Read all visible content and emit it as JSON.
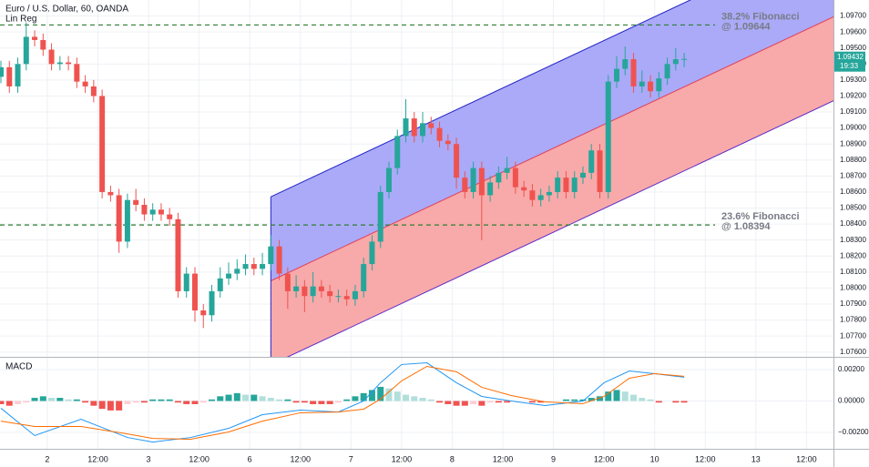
{
  "header": {
    "title": "Euro / U.S. Dollar, 60, OANDA",
    "indicator": "Lin Reg"
  },
  "chart_data": [
    {
      "type": "candlestick",
      "x": [
        0,
        2,
        4,
        6,
        8,
        10,
        12,
        14,
        16,
        18,
        20,
        22,
        24,
        26,
        28,
        30,
        32,
        34,
        36,
        38,
        40,
        42,
        44,
        46,
        48,
        50,
        52,
        54,
        56,
        58,
        60,
        62,
        64,
        66,
        68,
        70,
        72,
        74,
        76,
        78,
        80,
        82,
        84,
        86,
        88,
        90,
        92,
        94,
        96,
        98,
        100,
        102,
        104,
        106,
        108,
        110,
        112,
        114,
        116,
        118,
        120,
        122,
        124,
        126,
        128,
        130,
        132,
        134,
        136,
        138,
        140,
        142,
        144,
        146,
        148,
        150,
        152,
        154,
        156,
        158,
        160,
        162
      ],
      "open": [
        1.0932,
        1.0938,
        1.0926,
        1.094,
        1.0957,
        1.0955,
        1.0949,
        1.094,
        1.0941,
        1.094,
        1.0929,
        1.0926,
        1.092,
        1.086,
        1.0858,
        1.0829,
        1.0855,
        1.0852,
        1.0846,
        1.0849,
        1.0846,
        1.0843,
        1.0798,
        1.0809,
        1.0786,
        1.0783,
        1.0798,
        1.0806,
        1.0809,
        1.0812,
        1.0815,
        1.0812,
        1.0815,
        1.0826,
        1.0809,
        1.0798,
        1.0801,
        1.0795,
        1.0801,
        1.0798,
        1.0795,
        1.0795,
        1.0793,
        1.0798,
        1.0815,
        1.0829,
        1.086,
        1.0875,
        1.0895,
        1.0906,
        1.0895,
        1.0903,
        1.09,
        1.0892,
        1.089,
        1.0869,
        1.086,
        1.0875,
        1.0858,
        1.0866,
        1.0872,
        1.0875,
        1.0863,
        1.0861,
        1.0855,
        1.0858,
        1.086,
        1.0869,
        1.086,
        1.0869,
        1.0872,
        1.0886,
        1.086,
        1.0929,
        1.0937,
        1.0943,
        1.0926,
        1.0929,
        1.0923,
        1.0931,
        1.094,
        1.0943
      ],
      "high": [
        1.0942,
        1.0942,
        1.0944,
        1.0966,
        1.0961,
        1.0959,
        1.0953,
        1.0945,
        1.0945,
        1.0944,
        1.0933,
        1.093,
        1.0924,
        1.0864,
        1.0862,
        1.0859,
        1.0862,
        1.0856,
        1.0853,
        1.0853,
        1.085,
        1.0847,
        1.0813,
        1.0813,
        1.079,
        1.0802,
        1.0813,
        1.0816,
        1.0818,
        1.0821,
        1.0819,
        1.0822,
        1.0833,
        1.083,
        1.0813,
        1.0808,
        1.0805,
        1.081,
        1.0805,
        1.0802,
        1.0799,
        1.0799,
        1.0802,
        1.0819,
        1.0833,
        1.0864,
        1.0879,
        1.0899,
        1.0918,
        1.091,
        1.091,
        1.0907,
        1.0904,
        1.0896,
        1.0894,
        1.0873,
        1.0879,
        1.0879,
        1.087,
        1.0876,
        1.0882,
        1.0879,
        1.0867,
        1.0865,
        1.0862,
        1.0864,
        1.0873,
        1.0873,
        1.0873,
        1.0876,
        1.089,
        1.089,
        1.0933,
        1.0945,
        1.0951,
        1.0947,
        1.0936,
        1.0933,
        1.0935,
        1.0944,
        1.095,
        1.0947
      ],
      "low": [
        1.0928,
        1.0922,
        1.0922,
        1.0936,
        1.0951,
        1.0945,
        1.0936,
        1.0936,
        1.0936,
        1.0925,
        1.0922,
        1.0916,
        1.0856,
        1.0854,
        1.0822,
        1.0825,
        1.0848,
        1.0842,
        1.0842,
        1.0842,
        1.0839,
        1.0794,
        1.0794,
        1.0779,
        1.0775,
        1.0779,
        1.0794,
        1.0802,
        1.0805,
        1.0808,
        1.0808,
        1.0808,
        1.0811,
        1.0805,
        1.0787,
        1.0794,
        1.0785,
        1.0791,
        1.0794,
        1.0791,
        1.0791,
        1.0789,
        1.0789,
        1.0794,
        1.0811,
        1.0825,
        1.0856,
        1.0871,
        1.0891,
        1.0891,
        1.0891,
        1.0896,
        1.0888,
        1.0886,
        1.0862,
        1.0856,
        1.0856,
        1.083,
        1.0854,
        1.0862,
        1.0868,
        1.0859,
        1.0857,
        1.0851,
        1.0851,
        1.0854,
        1.0856,
        1.0856,
        1.0856,
        1.0865,
        1.0868,
        1.0856,
        1.0856,
        1.0925,
        1.0933,
        1.0922,
        1.0922,
        1.0919,
        1.0919,
        1.0927,
        1.0936,
        1.0938
      ],
      "close": [
        1.0938,
        1.0926,
        1.094,
        1.0957,
        1.0955,
        1.0949,
        1.094,
        1.0941,
        1.094,
        1.0929,
        1.0926,
        1.092,
        1.086,
        1.0858,
        1.0829,
        1.0855,
        1.0852,
        1.0846,
        1.0849,
        1.0846,
        1.0843,
        1.0798,
        1.0809,
        1.0786,
        1.0783,
        1.0798,
        1.0806,
        1.0809,
        1.0812,
        1.0815,
        1.0812,
        1.0815,
        1.0826,
        1.0809,
        1.0798,
        1.0801,
        1.0795,
        1.0801,
        1.0798,
        1.0795,
        1.0795,
        1.0793,
        1.0798,
        1.0815,
        1.0829,
        1.086,
        1.0875,
        1.0895,
        1.0906,
        1.0895,
        1.0903,
        1.09,
        1.0892,
        1.089,
        1.0869,
        1.086,
        1.0875,
        1.0858,
        1.0866,
        1.0872,
        1.0875,
        1.0863,
        1.0861,
        1.0855,
        1.0858,
        1.086,
        1.0869,
        1.086,
        1.0869,
        1.0872,
        1.0886,
        1.086,
        1.0929,
        1.0937,
        1.0943,
        1.0926,
        1.0929,
        1.0923,
        1.0931,
        1.094,
        1.0943,
        1.09432
      ],
      "up_color": "#26a69a",
      "down_color": "#ef5350",
      "xlim": [
        0,
        197.4
      ],
      "xticks": [
        {
          "value": 11,
          "label": "2"
        },
        {
          "value": 23,
          "label": "12:00"
        },
        {
          "value": 35,
          "label": "3"
        },
        {
          "value": 47,
          "label": "12:00"
        },
        {
          "value": 59,
          "label": "6"
        },
        {
          "value": 71,
          "label": "12:00"
        },
        {
          "value": 83,
          "label": "7"
        },
        {
          "value": 95,
          "label": "12:00"
        },
        {
          "value": 107,
          "label": "8"
        },
        {
          "value": 119,
          "label": "12:00"
        },
        {
          "value": 131,
          "label": "9"
        },
        {
          "value": 143,
          "label": "12:00"
        },
        {
          "value": 155,
          "label": "10"
        },
        {
          "value": 167,
          "label": "12:00"
        },
        {
          "value": 179,
          "label": "13"
        },
        {
          "value": 191,
          "label": "12:00"
        }
      ],
      "ylim": [
        1.0757,
        1.098
      ],
      "yticks": [
        {
          "value": 1.076,
          "label": "1.07600"
        },
        {
          "value": 1.077,
          "label": "1.07700"
        },
        {
          "value": 1.078,
          "label": "1.07800"
        },
        {
          "value": 1.079,
          "label": "1.07900"
        },
        {
          "value": 1.08,
          "label": "1.08000"
        },
        {
          "value": 1.081,
          "label": "1.08100"
        },
        {
          "value": 1.082,
          "label": "1.08200"
        },
        {
          "value": 1.083,
          "label": "1.08300"
        },
        {
          "value": 1.084,
          "label": "1.08400"
        },
        {
          "value": 1.085,
          "label": "1.08500"
        },
        {
          "value": 1.086,
          "label": "1.08600"
        },
        {
          "value": 1.087,
          "label": "1.08700"
        },
        {
          "value": 1.088,
          "label": "1.08800"
        },
        {
          "value": 1.089,
          "label": "1.08900"
        },
        {
          "value": 1.09,
          "label": "1.09000"
        },
        {
          "value": 1.091,
          "label": "1.09100"
        },
        {
          "value": 1.092,
          "label": "1.09200"
        },
        {
          "value": 1.093,
          "label": "1.09300"
        },
        {
          "value": 1.094,
          "label": "1.09400"
        },
        {
          "value": 1.095,
          "label": "1.09500"
        },
        {
          "value": 1.096,
          "label": "1.09600"
        },
        {
          "value": 1.097,
          "label": "1.09700"
        }
      ],
      "grid": true,
      "channel": {
        "x": [
          64,
          197.4
        ],
        "upper": [
          1.0857,
          1.1022
        ],
        "middle": [
          1.08045,
          1.09695
        ],
        "lower": [
          1.0752,
          1.0917
        ],
        "upper_fill": "#aaaaf8",
        "lower_fill": "#f8a9a9",
        "upper_color": "#2323c8",
        "middle_color": "#e0405a",
        "lower_color": "#5b2bc8"
      },
      "fibonacci": [
        {
          "label": "38.2% Fibonacci",
          "value_label": "@ 1.09644",
          "value": 1.09644
        },
        {
          "label": "23.6% Fibonacci",
          "value_label": "@ 1.08394",
          "value": 1.08394
        }
      ],
      "fib_color": "#2e7d32",
      "last_price": 1.09432,
      "countdown": "19:33"
    },
    {
      "type": "macd",
      "title": "MACD",
      "x": [
        0,
        2,
        4,
        6,
        8,
        10,
        12,
        14,
        16,
        18,
        20,
        22,
        24,
        26,
        28,
        30,
        32,
        34,
        36,
        38,
        40,
        42,
        44,
        46,
        48,
        50,
        52,
        54,
        56,
        58,
        60,
        62,
        64,
        66,
        68,
        70,
        72,
        74,
        76,
        78,
        80,
        82,
        84,
        86,
        88,
        90,
        92,
        94,
        96,
        98,
        100,
        102,
        104,
        106,
        108,
        110,
        112,
        114,
        116,
        118,
        120,
        122,
        124,
        126,
        128,
        130,
        132,
        134,
        136,
        138,
        140,
        142,
        144,
        146,
        148,
        150,
        152,
        154,
        156,
        158,
        160,
        162
      ],
      "histogram": [
        -0.0002,
        -0.0003,
        -0.0002,
        -0.0001,
        0.0002,
        0.0003,
        0.0002,
        0.0002,
        0.0001,
        0.0001,
        -0.0001,
        -0.0003,
        -0.0005,
        -0.0006,
        -0.0006,
        -0.0002,
        -0.0001,
        -0.0001,
        0.0001,
        0.0001,
        0.0001,
        -0.0001,
        -0.0002,
        -0.0002,
        -0.0001,
        0.0001,
        0.0003,
        0.0004,
        0.0005,
        0.0004,
        0.0004,
        0.0003,
        0.0002,
        0.0001,
        0.0001,
        -0.0001,
        -0.0001,
        -0.0002,
        -0.0002,
        -0.0002,
        -0.0001,
        0.0001,
        0.0003,
        0.0005,
        0.0007,
        0.0009,
        0.0008,
        0.0006,
        0.0004,
        0.0003,
        0.0002,
        0.0001,
        -0.0001,
        -0.0002,
        -0.0003,
        -0.0003,
        -0.0002,
        -0.0003,
        -0.0001,
        -0.0001,
        -0.0001,
        0,
        0,
        -0.0001,
        -0.0001,
        0,
        0,
        0.0001,
        0.0001,
        0.0001,
        0.0002,
        0.0003,
        0.0006,
        0.0007,
        0.0006,
        0.0004,
        0.0002,
        0.0001,
        -0.0001,
        0,
        -0.0001,
        -0.0001
      ],
      "hist_colors": {
        "up_grow": "#26a69a",
        "up_fall": "#b2dfdb",
        "down_grow": "#ef5350",
        "down_fall": "#ffcdd2"
      },
      "macd_line": {
        "color": "#2196f3",
        "x": [
          0,
          8,
          19,
          30,
          36,
          45,
          54,
          62,
          71,
          80,
          86,
          90,
          95,
          101,
          108,
          114,
          121,
          129,
          138,
          143,
          149,
          155,
          162
        ],
        "values": [
          -0.00046,
          -0.0022,
          -0.00116,
          -0.00232,
          -0.00261,
          -0.00232,
          -0.00174,
          -0.00087,
          -0.00058,
          -0.0007,
          0,
          0.00116,
          0.00232,
          0.00243,
          0.00116,
          0.00029,
          0,
          -0.00029,
          0,
          0.00116,
          0.00191,
          0.00174,
          0.00151
        ]
      },
      "signal_line": {
        "color": "#ff6d00",
        "x": [
          0,
          8,
          19,
          30,
          36,
          45,
          54,
          62,
          71,
          80,
          86,
          90,
          95,
          101,
          108,
          114,
          121,
          129,
          138,
          143,
          149,
          155,
          162
        ],
        "values": [
          -0.00128,
          -0.00162,
          -0.00162,
          -0.00209,
          -0.00238,
          -0.00243,
          -0.00197,
          -0.00128,
          -0.00075,
          -0.0007,
          -0.00052,
          0.00012,
          0.00128,
          0.0022,
          0.00186,
          0.00087,
          0.00035,
          -6e-05,
          -0.00017,
          0.00029,
          0.00145,
          0.00174,
          0.00157
        ]
      },
      "ylim": [
        -0.00304,
        0.00275
      ],
      "yticks": [
        {
          "value": 0.002,
          "label": "0.00200"
        },
        {
          "value": 0,
          "label": "0.00000"
        },
        {
          "value": -0.002,
          "label": "−0.00200"
        }
      ]
    }
  ]
}
